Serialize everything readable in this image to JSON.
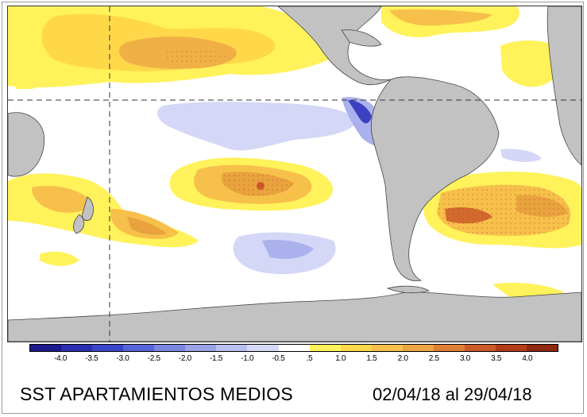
{
  "title": "SST APARTAMIENTOS MEDIOS",
  "dates": "02/04/18 al 29/04/18",
  "legend": {
    "labels": [
      "-4.0",
      "-3.5",
      "-3.0",
      "-2.5",
      "-2.0",
      "-1.5",
      "-1.0",
      "-0.5",
      ".5",
      "1.0",
      "1.5",
      "2.0",
      "2.5",
      "3.0",
      "3.5",
      "4.0"
    ],
    "colors": [
      "#1c1a8c",
      "#2a2fb0",
      "#3a45c8",
      "#5764d8",
      "#7a86e0",
      "#9aa3e8",
      "#b9bff0",
      "#d6d9f6",
      "#ffffff",
      "#fff25a",
      "#ffd84a",
      "#f7c04a",
      "#eda544",
      "#e07f36",
      "#cc5a28",
      "#b43c18",
      "#8f2810"
    ]
  },
  "colors": {
    "land": "#c2c2c2",
    "ocean": "#ffffff",
    "warm_light": "#fff25a",
    "warm_mid": "#f7c04a",
    "warm_strong": "#e9a23e",
    "warm_core": "#cc5a28",
    "cool_light": "#cfd3f6",
    "cool_mid": "#aab1ec",
    "cool_strong": "#3b41c0"
  }
}
